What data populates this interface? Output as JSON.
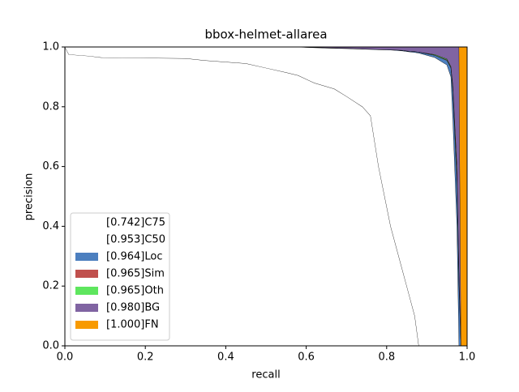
{
  "chart_data": {
    "type": "pr-area",
    "title": "bbox-helmet-allarea",
    "xlabel": "recall",
    "ylabel": "precision",
    "x": [
      0,
      0.01,
      0.06,
      0.09,
      0.3,
      0.35,
      0.45,
      0.5,
      0.55,
      0.58,
      0.62,
      0.67,
      0.7,
      0.74,
      0.76,
      0.78,
      0.81,
      0.84,
      0.85,
      0.87,
      0.88,
      0.92,
      0.95,
      0.96,
      0.965,
      0.975,
      0.98,
      0.985,
      0.99,
      1.0
    ],
    "series": [
      {
        "name": "[0.742]C75",
        "color": "#ffffff",
        "values": [
          1.0,
          0.975,
          0.97,
          0.965,
          0.962,
          0.955,
          0.945,
          0.93,
          0.915,
          0.905,
          0.88,
          0.86,
          0.835,
          0.8,
          0.77,
          0.6,
          0.4,
          0.25,
          0.2,
          0.1,
          0,
          0,
          0,
          0,
          0,
          0,
          0,
          0,
          0,
          0
        ]
      },
      {
        "name": "[0.953]C50",
        "color": "#ffffff",
        "values": [
          1,
          1,
          1,
          1,
          1,
          1,
          1,
          1,
          1,
          1,
          0.998,
          0.996,
          0.995,
          0.993,
          0.992,
          0.991,
          0.99,
          0.987,
          0.985,
          0.982,
          0.98,
          0.965,
          0.94,
          0.9,
          0.75,
          0.4,
          0,
          0,
          0,
          0
        ]
      },
      {
        "name": "[0.964]Loc",
        "color": "#4c7fbf",
        "values": [
          1,
          1,
          1,
          1,
          1,
          1,
          1,
          1,
          1,
          1,
          0.999,
          0.997,
          0.996,
          0.994,
          0.993,
          0.992,
          0.991,
          0.989,
          0.987,
          0.985,
          0.983,
          0.972,
          0.955,
          0.93,
          0.85,
          0.55,
          0.2,
          0,
          0,
          0
        ]
      },
      {
        "name": "[0.965]Sim",
        "color": "#c0504d",
        "values": [
          1,
          1,
          1,
          1,
          1,
          1,
          1,
          1,
          1,
          1,
          0.999,
          0.997,
          0.996,
          0.994,
          0.993,
          0.992,
          0.991,
          0.989,
          0.987,
          0.985,
          0.983,
          0.973,
          0.957,
          0.932,
          0.86,
          0.57,
          0.22,
          0,
          0,
          0
        ]
      },
      {
        "name": "[0.965]Oth",
        "color": "#5ee65e",
        "values": [
          1,
          1,
          1,
          1,
          1,
          1,
          1,
          1,
          1,
          1,
          0.999,
          0.997,
          0.996,
          0.994,
          0.993,
          0.992,
          0.991,
          0.989,
          0.987,
          0.985,
          0.983,
          0.975,
          0.96,
          0.935,
          0.87,
          0.6,
          0.25,
          0,
          0,
          0
        ]
      },
      {
        "name": "[0.980]BG",
        "color": "#8064a2",
        "values": [
          1,
          1,
          1,
          1,
          1,
          1,
          1,
          1,
          1,
          1,
          1,
          1,
          1,
          1,
          1,
          1,
          1,
          1,
          1,
          1,
          1,
          1,
          1,
          1,
          1,
          1,
          1,
          0,
          0,
          0
        ]
      },
      {
        "name": "[1.000]FN",
        "color": "#f89a00",
        "values": [
          1,
          1,
          1,
          1,
          1,
          1,
          1,
          1,
          1,
          1,
          1,
          1,
          1,
          1,
          1,
          1,
          1,
          1,
          1,
          1,
          1,
          1,
          1,
          1,
          1,
          1,
          1,
          1,
          1,
          1
        ]
      }
    ],
    "xlim": [
      0,
      1
    ],
    "ylim": [
      0,
      1
    ],
    "xticks": [
      {
        "value": 0,
        "label": "0.0"
      },
      {
        "value": 0.2,
        "label": "0.2"
      },
      {
        "value": 0.4,
        "label": "0.4"
      },
      {
        "value": 0.6,
        "label": "0.6"
      },
      {
        "value": 0.8,
        "label": "0.8"
      },
      {
        "value": 1,
        "label": "1.0"
      }
    ],
    "yticks": [
      {
        "value": 0,
        "label": "0.0"
      },
      {
        "value": 0.2,
        "label": "0.2"
      },
      {
        "value": 0.4,
        "label": "0.4"
      },
      {
        "value": 0.6,
        "label": "0.6"
      },
      {
        "value": 0.8,
        "label": "0.8"
      },
      {
        "value": 1,
        "label": "1.0"
      }
    ],
    "legend": "lower left"
  }
}
